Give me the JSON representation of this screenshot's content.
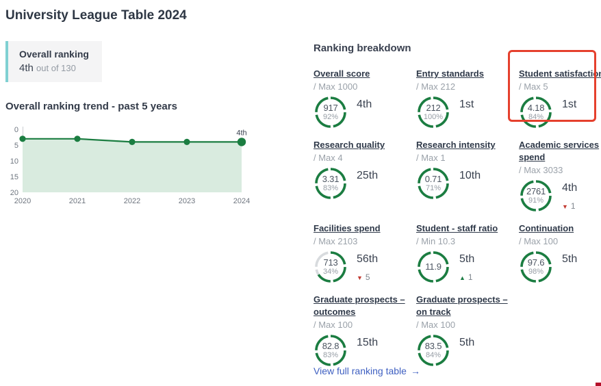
{
  "page": {
    "title": "University League Table 2024"
  },
  "overall_ranking": {
    "label": "Overall ranking",
    "rank": "4th",
    "suffix": "out of 130"
  },
  "trend": {
    "title": "Overall ranking trend - past 5 years"
  },
  "chart_data": {
    "type": "area",
    "title": "Overall ranking trend - past 5 years",
    "x": [
      2020,
      2021,
      2022,
      2023,
      2024
    ],
    "values": [
      3,
      3,
      4,
      4,
      4
    ],
    "xlabel": "",
    "ylabel": "",
    "ylim": [
      0,
      20
    ],
    "y_inverted": true,
    "yticks": [
      0,
      5,
      10,
      15,
      20
    ],
    "grid": false,
    "last_point_label": "4th",
    "line_color": "#1b7d41",
    "fill_color": "#d9ebdf"
  },
  "breakdown": {
    "title": "Ranking breakdown",
    "metrics": [
      {
        "name": "Overall score",
        "max": "/ Max 1000",
        "value": "917",
        "pct": "92%",
        "rank": "4th",
        "ring_pct": 100,
        "change": null,
        "highlighted": false
      },
      {
        "name": "Entry standards",
        "max": "/ Max 212",
        "value": "212",
        "pct": "100%",
        "rank": "1st",
        "ring_pct": 100,
        "change": null,
        "highlighted": false
      },
      {
        "name": "Student satisfaction",
        "max": "/ Max 5",
        "value": "4.18",
        "pct": "84%",
        "rank": "1st",
        "ring_pct": 100,
        "change": null,
        "highlighted": true
      },
      {
        "name": "Research quality",
        "max": "/ Max 4",
        "value": "3.31",
        "pct": "83%",
        "rank": "25th",
        "ring_pct": 100,
        "change": null,
        "highlighted": false
      },
      {
        "name": "Research intensity",
        "max": "/ Max 1",
        "value": "0.71",
        "pct": "71%",
        "rank": "10th",
        "ring_pct": 100,
        "change": null,
        "highlighted": false
      },
      {
        "name": "Academic services spend",
        "max": "/ Max 3033",
        "value": "2761",
        "pct": "91%",
        "rank": "4th",
        "ring_pct": 100,
        "change": {
          "dir": "down",
          "amount": "1"
        },
        "highlighted": false
      },
      {
        "name": "Facilities spend",
        "max": "/ Max 2103",
        "value": "713",
        "pct": "34%",
        "rank": "56th",
        "ring_pct": 66,
        "change": {
          "dir": "down",
          "amount": "5"
        },
        "highlighted": false
      },
      {
        "name": "Student - staff ratio",
        "max": "/ Min 10.3",
        "value": "11.9",
        "pct": null,
        "rank": "5th",
        "ring_pct": 100,
        "change": {
          "dir": "up",
          "amount": "1"
        },
        "highlighted": false
      },
      {
        "name": "Continuation",
        "max": "/ Max 100",
        "value": "97.6",
        "pct": "98%",
        "rank": "5th",
        "ring_pct": 100,
        "change": null,
        "highlighted": false
      },
      {
        "name": "Graduate prospects – outcomes",
        "max": "/ Max 100",
        "value": "82.8",
        "pct": "83%",
        "rank": "15th",
        "ring_pct": 100,
        "change": null,
        "highlighted": false
      },
      {
        "name": "Graduate prospects – on track",
        "max": "/ Max 100",
        "value": "83.5",
        "pct": "84%",
        "rank": "5th",
        "ring_pct": 100,
        "change": null,
        "highlighted": false
      }
    ],
    "link": "View full ranking table",
    "link_arrow": "→"
  },
  "colors": {
    "green": "#1b7d41",
    "ring_gray": "#d8dbde",
    "highlight_red": "#e5402d",
    "down_red": "#c23b33",
    "up_green": "#1d7d45",
    "link_blue": "#3e5fc1"
  }
}
